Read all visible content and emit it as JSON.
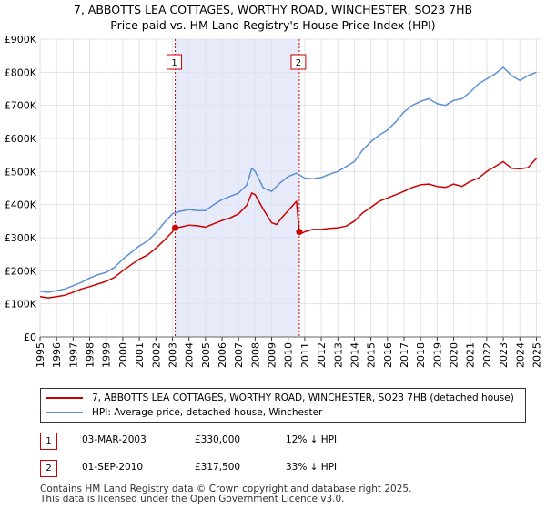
{
  "header": {
    "title_line1": "7, ABBOTTS LEA COTTAGES, WORTHY ROAD, WINCHESTER, SO23 7HB",
    "title_line2": "Price paid vs. HM Land Registry's House Price Index (HPI)"
  },
  "legend": {
    "property_label": "7, ABBOTTS LEA COTTAGES, WORTHY ROAD, WINCHESTER, SO23 7HB (detached house)",
    "hpi_label": "HPI: Average price, detached house, Winchester"
  },
  "transactions": [
    {
      "num": "1",
      "date": "03-MAR-2003",
      "price": "£330,000",
      "hpi_diff": "12% ↓ HPI"
    },
    {
      "num": "2",
      "date": "01-SEP-2010",
      "price": "£317,500",
      "hpi_diff": "33% ↓ HPI"
    }
  ],
  "footer": {
    "line1": "Contains HM Land Registry data © Crown copyright and database right 2025.",
    "line2": "This data is licensed under the Open Government Licence v3.0."
  },
  "chart_data": {
    "type": "line",
    "title": "7, ABBOTTS LEA COTTAGES, WORTHY ROAD, WINCHESTER, SO23 7HB",
    "subtitle": "Price paid vs. HM Land Registry's House Price Index (HPI)",
    "xlabel": "",
    "ylabel": "",
    "xlim": [
      1995.0,
      2025.25
    ],
    "ylim": [
      0,
      900000
    ],
    "x_ticks": [
      1995,
      1996,
      1997,
      1998,
      1999,
      2000,
      2001,
      2002,
      2003,
      2004,
      2005,
      2006,
      2007,
      2008,
      2009,
      2010,
      2011,
      2012,
      2013,
      2014,
      2015,
      2016,
      2017,
      2018,
      2019,
      2020,
      2021,
      2022,
      2023,
      2024,
      2025
    ],
    "y_ticks": [
      0,
      100000,
      200000,
      300000,
      400000,
      500000,
      600000,
      700000,
      800000,
      900000
    ],
    "y_tick_labels": [
      "£0",
      "£100K",
      "£200K",
      "£300K",
      "£400K",
      "£500K",
      "£600K",
      "£700K",
      "£800K",
      "£900K"
    ],
    "grid": true,
    "shaded_span": [
      2003.17,
      2010.67
    ],
    "series": [
      {
        "name": "7, ABBOTTS LEA COTTAGES, WORTHY ROAD, WINCHESTER, SO23 7HB (detached house)",
        "color": "#cc0000",
        "x": [
          1995.0,
          1995.5,
          1996.0,
          1996.5,
          1997.0,
          1997.5,
          1998.0,
          1998.5,
          1999.0,
          1999.5,
          2000.0,
          2000.5,
          2001.0,
          2001.5,
          2002.0,
          2002.5,
          2003.0,
          2003.17,
          2003.5,
          2004.0,
          2004.5,
          2005.0,
          2005.5,
          2006.0,
          2006.5,
          2007.0,
          2007.5,
          2007.8,
          2008.0,
          2008.5,
          2009.0,
          2009.3,
          2009.6,
          2010.0,
          2010.5,
          2010.67,
          2010.8,
          2011.0,
          2011.5,
          2012.0,
          2012.5,
          2013.0,
          2013.5,
          2014.0,
          2014.5,
          2015.0,
          2015.5,
          2016.0,
          2016.5,
          2017.0,
          2017.5,
          2018.0,
          2018.5,
          2019.0,
          2019.5,
          2020.0,
          2020.5,
          2021.0,
          2021.5,
          2022.0,
          2022.5,
          2023.0,
          2023.5,
          2024.0,
          2024.5,
          2025.0
        ],
        "values": [
          122000,
          118000,
          122000,
          126000,
          135000,
          145000,
          152000,
          160000,
          168000,
          180000,
          200000,
          218000,
          235000,
          248000,
          268000,
          292000,
          318000,
          330000,
          332000,
          338000,
          336000,
          332000,
          342000,
          352000,
          360000,
          372000,
          398000,
          435000,
          430000,
          385000,
          345000,
          340000,
          360000,
          382000,
          410000,
          317500,
          313000,
          318000,
          325000,
          325000,
          328000,
          330000,
          335000,
          350000,
          375000,
          392000,
          410000,
          420000,
          430000,
          440000,
          452000,
          460000,
          462000,
          455000,
          452000,
          462000,
          455000,
          470000,
          480000,
          500000,
          515000,
          530000,
          510000,
          508000,
          512000,
          540000
        ]
      },
      {
        "name": "HPI: Average price, detached house, Winchester",
        "color": "#5b8fd4",
        "x": [
          1995.0,
          1995.5,
          1996.0,
          1996.5,
          1997.0,
          1997.5,
          1998.0,
          1998.5,
          1999.0,
          1999.5,
          2000.0,
          2000.5,
          2001.0,
          2001.5,
          2002.0,
          2002.5,
          2003.0,
          2003.5,
          2004.0,
          2004.5,
          2005.0,
          2005.5,
          2006.0,
          2006.5,
          2007.0,
          2007.5,
          2007.8,
          2008.0,
          2008.5,
          2009.0,
          2009.5,
          2010.0,
          2010.5,
          2011.0,
          2011.5,
          2012.0,
          2012.5,
          2013.0,
          2013.5,
          2014.0,
          2014.5,
          2015.0,
          2015.5,
          2016.0,
          2016.5,
          2017.0,
          2017.5,
          2018.0,
          2018.5,
          2019.0,
          2019.5,
          2020.0,
          2020.5,
          2021.0,
          2021.5,
          2022.0,
          2022.5,
          2023.0,
          2023.5,
          2024.0,
          2024.5,
          2025.0
        ],
        "values": [
          138000,
          135000,
          140000,
          145000,
          155000,
          165000,
          178000,
          188000,
          195000,
          210000,
          235000,
          255000,
          275000,
          290000,
          315000,
          345000,
          372000,
          380000,
          385000,
          382000,
          382000,
          400000,
          415000,
          425000,
          435000,
          460000,
          510000,
          500000,
          450000,
          440000,
          465000,
          485000,
          495000,
          480000,
          478000,
          482000,
          492000,
          500000,
          515000,
          530000,
          565000,
          590000,
          610000,
          625000,
          650000,
          680000,
          700000,
          712000,
          720000,
          705000,
          700000,
          715000,
          720000,
          740000,
          765000,
          780000,
          795000,
          815000,
          790000,
          775000,
          790000,
          800000
        ]
      }
    ],
    "markers": [
      {
        "label": "1",
        "x": 2003.17,
        "value": 330000
      },
      {
        "label": "2",
        "x": 2010.67,
        "value": 317500
      }
    ]
  }
}
